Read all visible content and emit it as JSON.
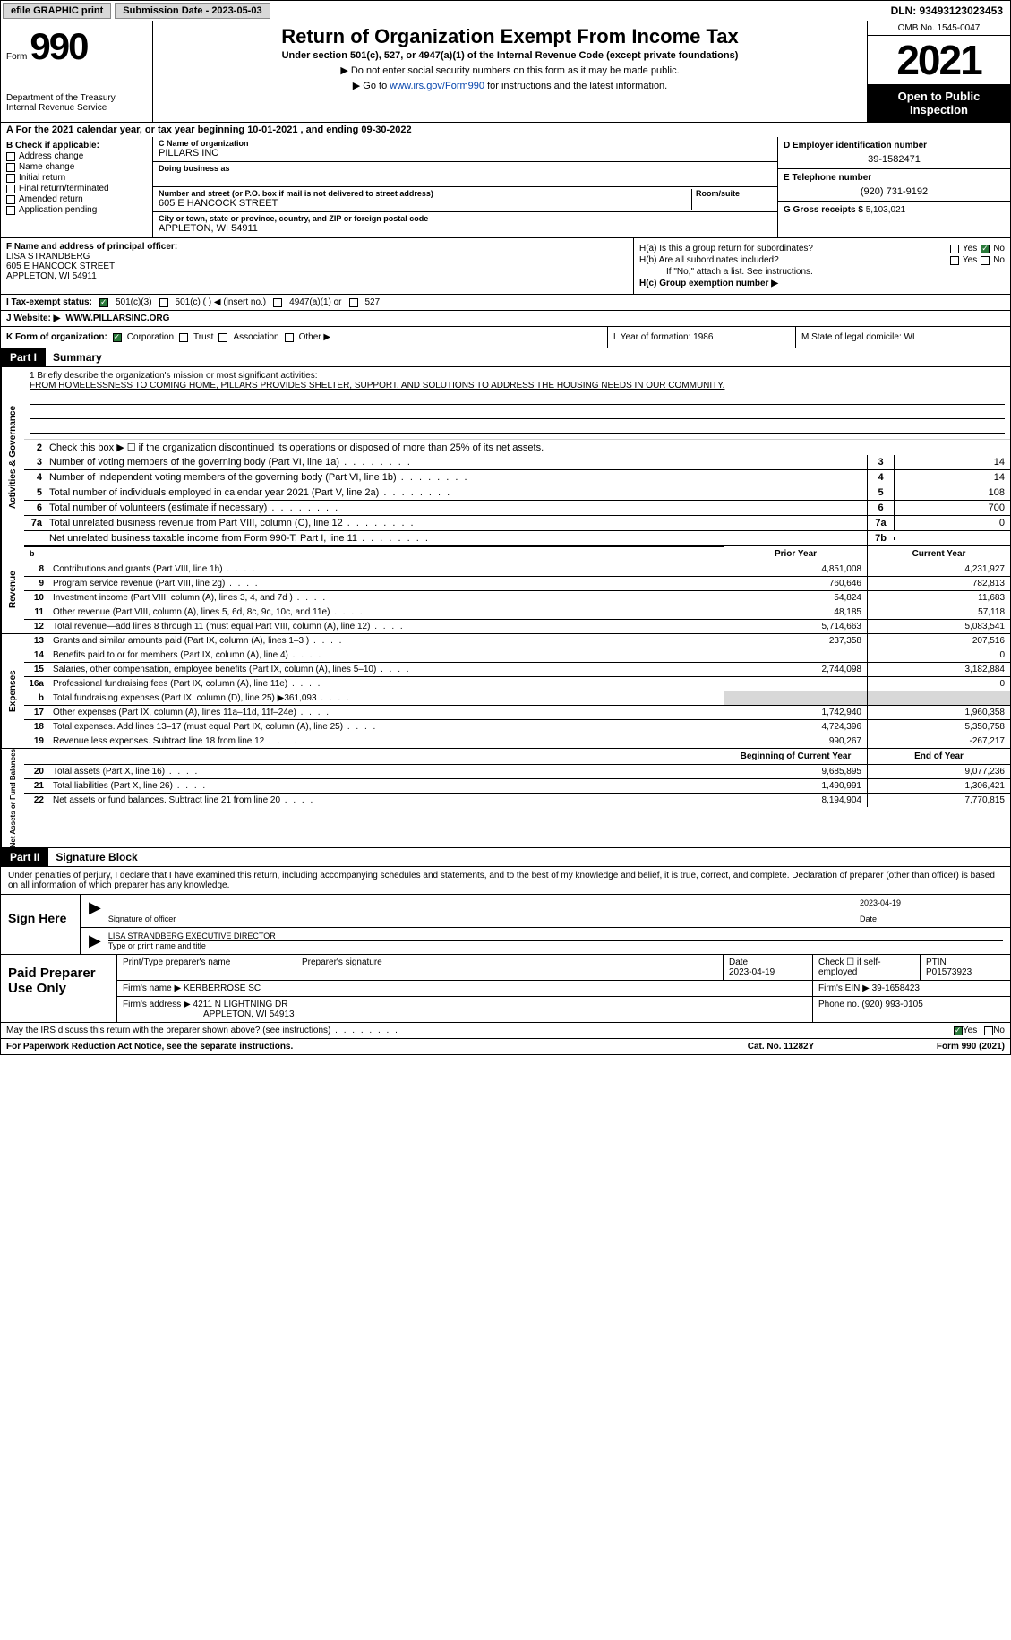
{
  "topbar": {
    "efile": "efile GRAPHIC print",
    "submission_label": "Submission Date - 2023-05-03",
    "dln": "DLN: 93493123023453"
  },
  "header": {
    "form_prefix": "Form",
    "form_number": "990",
    "dept": "Department of the Treasury Internal Revenue Service",
    "title": "Return of Organization Exempt From Income Tax",
    "subtitle": "Under section 501(c), 527, or 4947(a)(1) of the Internal Revenue Code (except private foundations)",
    "no_ssn": "▶ Do not enter social security numbers on this form as it may be made public.",
    "goto_prefix": "▶ Go to ",
    "goto_link": "www.irs.gov/Form990",
    "goto_suffix": " for instructions and the latest information.",
    "omb": "OMB No. 1545-0047",
    "year": "2021",
    "open_pub": "Open to Public Inspection"
  },
  "period": "A For the 2021 calendar year, or tax year beginning 10-01-2021   , and ending 09-30-2022",
  "checks": {
    "label": "B Check if applicable:",
    "items": [
      "Address change",
      "Name change",
      "Initial return",
      "Final return/terminated",
      "Amended return",
      "Application pending"
    ]
  },
  "org": {
    "c_label": "C Name of organization",
    "name": "PILLARS INC",
    "dba_label": "Doing business as",
    "dba": "",
    "street_label": "Number and street (or P.O. box if mail is not delivered to street address)",
    "room_label": "Room/suite",
    "street": "605 E HANCOCK STREET",
    "city_label": "City or town, state or province, country, and ZIP or foreign postal code",
    "city": "APPLETON, WI  54911"
  },
  "right": {
    "d_label": "D Employer identification number",
    "ein": "39-1582471",
    "e_label": "E Telephone number",
    "phone": "(920) 731-9192",
    "g_label": "G Gross receipts $",
    "gross": "5,103,021"
  },
  "officer": {
    "f_label": "F Name and address of principal officer:",
    "name": "LISA STRANDBERG",
    "street": "605 E HANCOCK STREET",
    "city": "APPLETON, WI  54911"
  },
  "group": {
    "ha": "H(a)  Is this a group return for subordinates?",
    "hb": "H(b)  Are all subordinates included?",
    "hb_note": "If \"No,\" attach a list. See instructions.",
    "hc": "H(c)  Group exemption number ▶",
    "yes": "Yes",
    "no": "No"
  },
  "status": {
    "i": "I   Tax-exempt status:",
    "c3": "501(c)(3)",
    "c_other": "501(c) (  ) ◀ (insert no.)",
    "a1": "4947(a)(1) or",
    "s527": "527"
  },
  "website": {
    "j": "J   Website: ▶",
    "url": "WWW.PILLARSINC.ORG"
  },
  "orgtype": {
    "k": "K Form of organization:",
    "corp": "Corporation",
    "trust": "Trust",
    "assoc": "Association",
    "other": "Other ▶",
    "l": "L Year of formation: 1986",
    "m": "M State of legal domicile: WI"
  },
  "part1": {
    "tab": "Part I",
    "title": "Summary"
  },
  "summary": {
    "side_activities": "Activities & Governance",
    "side_revenue": "Revenue",
    "side_expenses": "Expenses",
    "side_netassets": "Net Assets or Fund Balances",
    "line1_label": "1  Briefly describe the organization's mission or most significant activities:",
    "mission": "FROM HOMELESSNESS TO COMING HOME, PILLARS PROVIDES SHELTER, SUPPORT, AND SOLUTIONS TO ADDRESS THE HOUSING NEEDS IN OUR COMMUNITY.",
    "line2": "Check this box ▶ ☐  if the organization discontinued its operations or disposed of more than 25% of its net assets.",
    "prior_year": "Prior Year",
    "current_year": "Current Year",
    "begin_year": "Beginning of Current Year",
    "end_year": "End of Year",
    "rows_gov": [
      {
        "n": "3",
        "d": "Number of voting members of the governing body (Part VI, line 1a)",
        "box": "3",
        "v": "14"
      },
      {
        "n": "4",
        "d": "Number of independent voting members of the governing body (Part VI, line 1b)",
        "box": "4",
        "v": "14"
      },
      {
        "n": "5",
        "d": "Total number of individuals employed in calendar year 2021 (Part V, line 2a)",
        "box": "5",
        "v": "108"
      },
      {
        "n": "6",
        "d": "Total number of volunteers (estimate if necessary)",
        "box": "6",
        "v": "700"
      },
      {
        "n": "7a",
        "d": "Total unrelated business revenue from Part VIII, column (C), line 12",
        "box": "7a",
        "v": "0"
      },
      {
        "n": "",
        "d": "Net unrelated business taxable income from Form 990-T, Part I, line 11",
        "box": "7b",
        "v": ""
      }
    ],
    "rows_rev": [
      {
        "n": "8",
        "d": "Contributions and grants (Part VIII, line 1h)",
        "py": "4,851,008",
        "cy": "4,231,927"
      },
      {
        "n": "9",
        "d": "Program service revenue (Part VIII, line 2g)",
        "py": "760,646",
        "cy": "782,813"
      },
      {
        "n": "10",
        "d": "Investment income (Part VIII, column (A), lines 3, 4, and 7d )",
        "py": "54,824",
        "cy": "11,683"
      },
      {
        "n": "11",
        "d": "Other revenue (Part VIII, column (A), lines 5, 6d, 8c, 9c, 10c, and 11e)",
        "py": "48,185",
        "cy": "57,118"
      },
      {
        "n": "12",
        "d": "Total revenue—add lines 8 through 11 (must equal Part VIII, column (A), line 12)",
        "py": "5,714,663",
        "cy": "5,083,541"
      }
    ],
    "rows_exp": [
      {
        "n": "13",
        "d": "Grants and similar amounts paid (Part IX, column (A), lines 1–3 )",
        "py": "237,358",
        "cy": "207,516"
      },
      {
        "n": "14",
        "d": "Benefits paid to or for members (Part IX, column (A), line 4)",
        "py": "",
        "cy": "0"
      },
      {
        "n": "15",
        "d": "Salaries, other compensation, employee benefits (Part IX, column (A), lines 5–10)",
        "py": "2,744,098",
        "cy": "3,182,884"
      },
      {
        "n": "16a",
        "d": "Professional fundraising fees (Part IX, column (A), line 11e)",
        "py": "",
        "cy": "0"
      },
      {
        "n": "b",
        "d": "Total fundraising expenses (Part IX, column (D), line 25) ▶361,093",
        "py": "GRAY",
        "cy": "GRAY"
      },
      {
        "n": "17",
        "d": "Other expenses (Part IX, column (A), lines 11a–11d, 11f–24e)",
        "py": "1,742,940",
        "cy": "1,960,358"
      },
      {
        "n": "18",
        "d": "Total expenses. Add lines 13–17 (must equal Part IX, column (A), line 25)",
        "py": "4,724,396",
        "cy": "5,350,758"
      },
      {
        "n": "19",
        "d": "Revenue less expenses. Subtract line 18 from line 12",
        "py": "990,267",
        "cy": "-267,217"
      }
    ],
    "rows_net": [
      {
        "n": "20",
        "d": "Total assets (Part X, line 16)",
        "py": "9,685,895",
        "cy": "9,077,236"
      },
      {
        "n": "21",
        "d": "Total liabilities (Part X, line 26)",
        "py": "1,490,991",
        "cy": "1,306,421"
      },
      {
        "n": "22",
        "d": "Net assets or fund balances. Subtract line 21 from line 20",
        "py": "8,194,904",
        "cy": "7,770,815"
      }
    ]
  },
  "part2": {
    "tab": "Part II",
    "title": "Signature Block"
  },
  "decl": "Under penalties of perjury, I declare that I have examined this return, including accompanying schedules and statements, and to the best of my knowledge and belief, it is true, correct, and complete. Declaration of preparer (other than officer) is based on all information of which preparer has any knowledge.",
  "sign": {
    "here": "Sign Here",
    "officer_sig": "Signature of officer",
    "date": "2023-04-19",
    "name": "LISA STRANDBERG  EXECUTIVE DIRECTOR",
    "type_name": "Type or print name and title"
  },
  "prep": {
    "label": "Paid Preparer Use Only",
    "print_name": "Print/Type preparer's name",
    "sig": "Preparer's signature",
    "date_label": "Date",
    "date": "2023-04-19",
    "check_se": "Check ☐ if self-employed",
    "ptin_label": "PTIN",
    "ptin": "P01573923",
    "firm_name_label": "Firm's name    ▶",
    "firm_name": "KERBERROSE SC",
    "firm_ein_label": "Firm's EIN ▶",
    "firm_ein": "39-1658423",
    "firm_addr_label": "Firm's address ▶",
    "firm_addr1": "4211 N LIGHTNING DR",
    "firm_addr2": "APPLETON, WI  54913",
    "phone_label": "Phone no.",
    "phone": "(920) 993-0105"
  },
  "discuss": {
    "text": "May the IRS discuss this return with the preparer shown above? (see instructions)",
    "yes": "Yes",
    "no": "No"
  },
  "footer": {
    "pra": "For Paperwork Reduction Act Notice, see the separate instructions.",
    "cat": "Cat. No. 11282Y",
    "form": "Form 990 (2021)"
  },
  "colors": {
    "black": "#000000",
    "link": "#0645ad",
    "gray_btn": "#d8d8d8",
    "check_green": "#2a7a3a"
  }
}
